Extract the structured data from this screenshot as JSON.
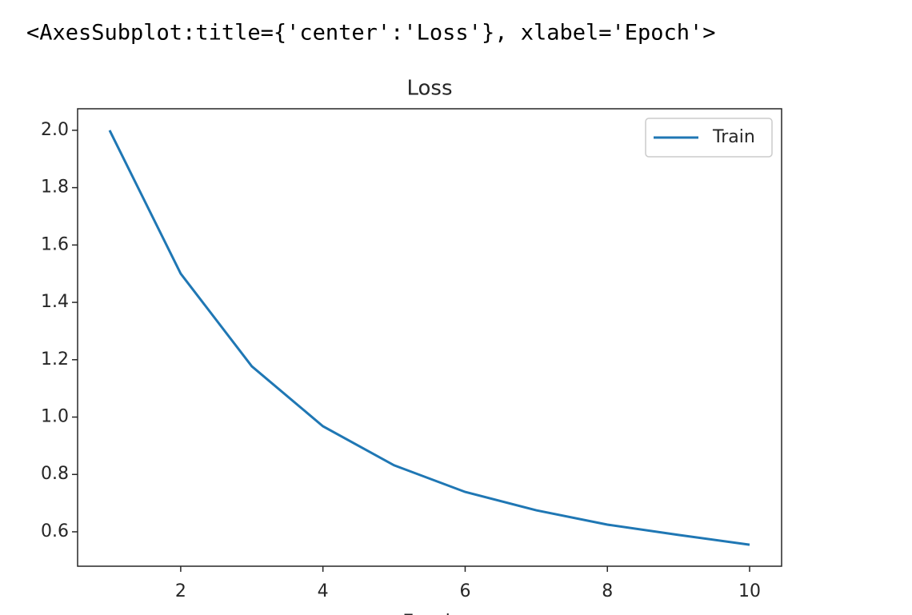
{
  "output_text": "<AxesSubplot:title={'center':'Loss'}, xlabel='Epoch'>",
  "chart_data": {
    "type": "line",
    "title": "Loss",
    "x_label": "Epoch",
    "x": [
      1,
      2,
      3,
      4,
      5,
      6,
      7,
      8,
      9,
      10
    ],
    "series": [
      {
        "name": "Train",
        "color": "#1f77b4",
        "values": [
          2.0,
          1.5,
          1.177,
          0.968,
          0.832,
          0.739,
          0.675,
          0.625,
          0.589,
          0.555
        ]
      }
    ],
    "xlim": [
      0.55,
      10.45
    ],
    "ylim": [
      0.48,
      2.075
    ],
    "xticks": [
      2,
      4,
      6,
      8,
      10
    ],
    "yticks": [
      0.6,
      0.8,
      {
        "value": 1,
        "label": "1.0"
      },
      1.2,
      1.4,
      1.6,
      1.8,
      {
        "value": 2,
        "label": "2.0"
      }
    ],
    "grid": false,
    "legend": "upper right"
  }
}
